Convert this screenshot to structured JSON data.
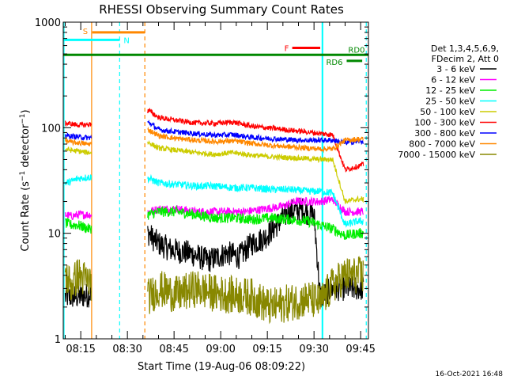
{
  "chart_data": {
    "type": "line",
    "title": "RHESSI Observing Summary Count Rates",
    "xlabel": "Start Time (19-Aug-06 08:09:22)",
    "ylabel": "Count Rate (s⁻¹ detector⁻¹)",
    "yscale": "log",
    "ylim": [
      1,
      1000
    ],
    "y_ticks": [
      1,
      10,
      100,
      1000
    ],
    "x_ticks": [
      "08:15",
      "08:30",
      "08:45",
      "09:00",
      "09:15",
      "09:30",
      "09:45"
    ],
    "x_tick_minutes": [
      15,
      30,
      45,
      60,
      75,
      90,
      105
    ],
    "xlim_minutes": [
      9.37,
      107.5
    ],
    "grid": false,
    "legend_header": [
      "Det 1,3,4,5,6,9,",
      "FDecim 2, Att 0"
    ],
    "legend_position": "right",
    "footer_timestamp": "16-Oct-2021 16:48",
    "gaps_minutes": [
      [
        18.5,
        36.5
      ]
    ],
    "series": [
      {
        "name": "3 - 6 keV",
        "color": "#000000",
        "points": [
          [
            10,
            2.5
          ],
          [
            12,
            2.5
          ],
          [
            14,
            2.5
          ],
          [
            17.5,
            2.6
          ],
          [
            37,
            10
          ],
          [
            38,
            9
          ],
          [
            40,
            8
          ],
          [
            44,
            7
          ],
          [
            50,
            6.5
          ],
          [
            56,
            5.5
          ],
          [
            62,
            6.5
          ],
          [
            66,
            6
          ],
          [
            70,
            8
          ],
          [
            74,
            9
          ],
          [
            78,
            12
          ],
          [
            82,
            16
          ],
          [
            86,
            17
          ],
          [
            89,
            15
          ],
          [
            90,
            15
          ],
          [
            92,
            2.5
          ],
          [
            96,
            3
          ],
          [
            100,
            3
          ],
          [
            104,
            3
          ],
          [
            106,
            3
          ]
        ]
      },
      {
        "name": "6 - 12 keV",
        "color": "#ff00ff",
        "points": [
          [
            10,
            15
          ],
          [
            12,
            14.5
          ],
          [
            14,
            15
          ],
          [
            17.5,
            15
          ],
          [
            37,
            16
          ],
          [
            40,
            17
          ],
          [
            46,
            17
          ],
          [
            52,
            16
          ],
          [
            56,
            16
          ],
          [
            62,
            16
          ],
          [
            68,
            16
          ],
          [
            74,
            17
          ],
          [
            80,
            18
          ],
          [
            84,
            20
          ],
          [
            88,
            20
          ],
          [
            92,
            20
          ],
          [
            96,
            21
          ],
          [
            100,
            16
          ],
          [
            104,
            16
          ],
          [
            106,
            16
          ]
        ]
      },
      {
        "name": "12 - 25 keV",
        "color": "#00ee00",
        "points": [
          [
            10,
            12.5
          ],
          [
            12,
            12
          ],
          [
            14,
            12
          ],
          [
            17.5,
            11
          ],
          [
            37,
            15
          ],
          [
            40,
            16
          ],
          [
            46,
            16
          ],
          [
            52,
            15
          ],
          [
            58,
            14
          ],
          [
            64,
            14
          ],
          [
            70,
            13.5
          ],
          [
            76,
            14
          ],
          [
            82,
            13.5
          ],
          [
            88,
            13
          ],
          [
            92,
            12
          ],
          [
            96,
            11
          ],
          [
            100,
            9.5
          ],
          [
            104,
            10
          ],
          [
            106,
            10
          ]
        ]
      },
      {
        "name": "25 - 50 keV",
        "color": "#00ffff",
        "points": [
          [
            10,
            30
          ],
          [
            12,
            31
          ],
          [
            14,
            33
          ],
          [
            17.5,
            34
          ],
          [
            37,
            33
          ],
          [
            40,
            30
          ],
          [
            46,
            29
          ],
          [
            52,
            28
          ],
          [
            58,
            28
          ],
          [
            64,
            27
          ],
          [
            70,
            27
          ],
          [
            76,
            26
          ],
          [
            82,
            26
          ],
          [
            88,
            25
          ],
          [
            92,
            25
          ],
          [
            96,
            24
          ],
          [
            100,
            12
          ],
          [
            104,
            13
          ],
          [
            106,
            13
          ]
        ]
      },
      {
        "name": "50 - 100 keV",
        "color": "#cccc00",
        "points": [
          [
            10,
            63
          ],
          [
            12,
            61
          ],
          [
            14,
            60
          ],
          [
            17.5,
            58
          ],
          [
            37,
            72
          ],
          [
            40,
            64
          ],
          [
            46,
            61
          ],
          [
            52,
            58
          ],
          [
            58,
            56
          ],
          [
            64,
            58
          ],
          [
            70,
            55
          ],
          [
            76,
            53
          ],
          [
            82,
            52
          ],
          [
            88,
            51
          ],
          [
            92,
            50
          ],
          [
            96,
            50
          ],
          [
            100,
            20
          ],
          [
            104,
            21
          ],
          [
            106,
            21
          ]
        ]
      },
      {
        "name": "100 - 300 keV",
        "color": "#ff0000",
        "points": [
          [
            10,
            110
          ],
          [
            12,
            109
          ],
          [
            14,
            106
          ],
          [
            17.5,
            107
          ],
          [
            37,
            145
          ],
          [
            40,
            125
          ],
          [
            46,
            117
          ],
          [
            52,
            111
          ],
          [
            58,
            110
          ],
          [
            64,
            113
          ],
          [
            70,
            103
          ],
          [
            76,
            99
          ],
          [
            82,
            95
          ],
          [
            88,
            91
          ],
          [
            92,
            88
          ],
          [
            96,
            86
          ],
          [
            100,
            40
          ],
          [
            104,
            43
          ],
          [
            106,
            45
          ]
        ]
      },
      {
        "name": "300 - 800 keV",
        "color": "#0000ff",
        "points": [
          [
            10,
            85
          ],
          [
            12,
            83
          ],
          [
            14,
            82
          ],
          [
            17.5,
            80
          ],
          [
            37,
            112
          ],
          [
            40,
            96
          ],
          [
            46,
            91
          ],
          [
            52,
            88
          ],
          [
            58,
            85
          ],
          [
            64,
            86
          ],
          [
            70,
            81
          ],
          [
            76,
            79
          ],
          [
            82,
            77
          ],
          [
            88,
            76
          ],
          [
            92,
            76
          ],
          [
            96,
            76
          ],
          [
            100,
            72
          ],
          [
            104,
            74
          ],
          [
            106,
            74
          ]
        ]
      },
      {
        "name": "800 - 7000 keV",
        "color": "#ff8800",
        "points": [
          [
            10,
            75
          ],
          [
            12,
            73
          ],
          [
            14,
            72
          ],
          [
            17.5,
            70
          ],
          [
            37,
            95
          ],
          [
            40,
            84
          ],
          [
            46,
            79
          ],
          [
            52,
            76
          ],
          [
            58,
            74
          ],
          [
            64,
            75
          ],
          [
            70,
            71
          ],
          [
            76,
            68
          ],
          [
            82,
            66
          ],
          [
            88,
            64
          ],
          [
            92,
            63
          ],
          [
            96,
            63
          ],
          [
            100,
            76
          ],
          [
            104,
            78
          ],
          [
            106,
            78
          ]
        ]
      },
      {
        "name": "7000 - 15000 keV",
        "color": "#888800",
        "points": [
          [
            10,
            4
          ],
          [
            12,
            3.2
          ],
          [
            14,
            4
          ],
          [
            17.5,
            3.5
          ],
          [
            37,
            2.5
          ],
          [
            40,
            3
          ],
          [
            46,
            2.6
          ],
          [
            52,
            3
          ],
          [
            58,
            2.7
          ],
          [
            64,
            2.6
          ],
          [
            70,
            2.5
          ],
          [
            76,
            2
          ],
          [
            82,
            2.2
          ],
          [
            88,
            2.4
          ],
          [
            92,
            2.2
          ],
          [
            96,
            3.2
          ],
          [
            100,
            4
          ],
          [
            104,
            4
          ],
          [
            106,
            4
          ]
        ]
      }
    ],
    "annotations": [
      {
        "label": "S",
        "color": "#ff8800",
        "x_range": [
          18.7,
          35.6
        ],
        "y": 800
      },
      {
        "label": "N",
        "color": "#00ffff",
        "x_range": [
          9.4,
          27.5
        ],
        "y": 680
      },
      {
        "label": "F",
        "color": "#ff0000",
        "x_range": [
          83,
          92
        ],
        "y": 570
      },
      {
        "label": "RD0",
        "color": "#008800",
        "x_range": [
          9.4,
          107.5
        ],
        "y": 490
      },
      {
        "label": "RD6",
        "color": "#008800",
        "x_range": [
          100.5,
          105.5
        ],
        "y": 430
      }
    ],
    "vertical_lines": [
      {
        "color": "#ff8800",
        "style": "solid",
        "x": 18.5
      },
      {
        "color": "#00ffff",
        "style": "dashed",
        "x": 27.5
      },
      {
        "color": "#ff8800",
        "style": "dashed",
        "x": 35.6
      },
      {
        "color": "#00ffff",
        "style": "solid",
        "x": 92.6
      },
      {
        "color": "#00ffff",
        "style": "dashed",
        "x": 106.8
      }
    ],
    "solid_cyan_ranges": [
      [
        9.4,
        27.5
      ],
      [
        92.6,
        107.5
      ]
    ]
  }
}
